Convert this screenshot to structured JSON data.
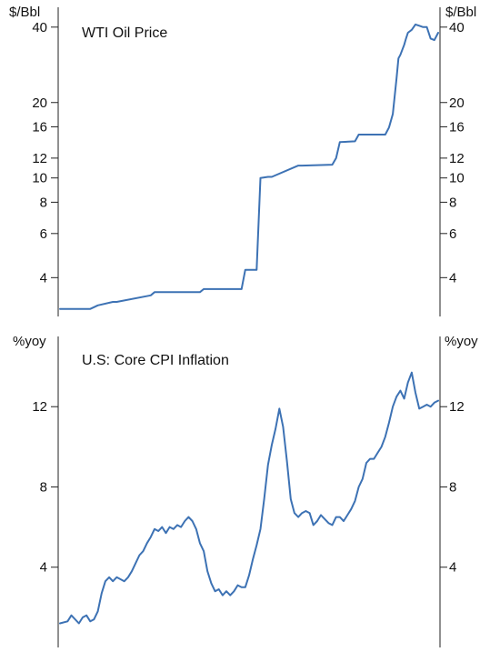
{
  "chart_data": [
    {
      "type": "line",
      "title": "WTI Oil Price",
      "y_unit_left": "$/Bbl",
      "y_unit_right": "$/Bbl",
      "y_scale": "log",
      "ylim": [
        2.8,
        48
      ],
      "y_ticks": [
        4,
        6,
        8,
        10,
        12,
        16,
        20,
        40
      ],
      "x_range": [
        0,
        100
      ],
      "grid": false,
      "color": "#3d72b4",
      "series": [
        {
          "x": [
            0,
            8,
            9,
            10,
            14,
            15,
            24,
            25,
            37,
            38,
            48,
            49,
            52,
            53,
            55,
            56,
            63,
            64,
            72,
            73,
            74,
            78,
            79,
            86,
            87,
            88,
            89,
            89.5,
            90,
            91,
            91.5,
            92,
            93,
            94,
            95,
            96,
            97,
            98,
            99,
            100
          ],
          "y": [
            3.0,
            3.0,
            3.05,
            3.1,
            3.2,
            3.2,
            3.4,
            3.5,
            3.5,
            3.6,
            3.6,
            4.3,
            4.3,
            10.0,
            10.1,
            10.1,
            11.2,
            11.2,
            11.3,
            12.0,
            13.9,
            14.0,
            14.9,
            14.9,
            15.9,
            18.0,
            25.0,
            30.0,
            31.0,
            34.0,
            36.0,
            38.0,
            39.0,
            41.0,
            40.5,
            40.0,
            40.0,
            36.0,
            35.5,
            38.0
          ]
        }
      ]
    },
    {
      "type": "line",
      "title": "U.S: Core CPI Inflation",
      "y_unit_left": "%yoy",
      "y_unit_right": "%yoy",
      "ylim": [
        0,
        15.5
      ],
      "y_ticks": [
        4,
        8,
        12
      ],
      "x_range": [
        0,
        100
      ],
      "grid": false,
      "color": "#3d72b4",
      "series": [
        {
          "x": [
            0,
            2,
            3,
            5,
            6,
            7,
            8,
            9,
            10,
            11,
            12,
            13,
            14,
            15,
            16,
            17,
            18,
            19,
            20,
            21,
            22,
            23,
            24,
            25,
            26,
            27,
            28,
            29,
            30,
            31,
            32,
            33,
            34,
            35,
            36,
            37,
            38,
            39,
            40,
            41,
            42,
            43,
            44,
            45,
            46,
            47,
            48,
            49,
            50,
            51,
            52,
            53,
            54,
            55,
            56,
            57,
            58,
            59,
            60,
            61,
            62,
            63,
            64,
            65,
            66,
            67,
            68,
            69,
            70,
            71,
            72,
            73,
            74,
            75,
            76,
            77,
            78,
            79,
            80,
            81,
            82,
            83,
            84,
            85,
            86,
            87,
            88,
            89,
            90,
            91,
            92,
            93,
            94,
            95,
            96,
            97,
            98,
            99,
            100
          ],
          "y": [
            1.2,
            1.3,
            1.6,
            1.2,
            1.5,
            1.6,
            1.3,
            1.4,
            1.8,
            2.7,
            3.3,
            3.5,
            3.3,
            3.5,
            3.4,
            3.3,
            3.5,
            3.8,
            4.2,
            4.6,
            4.8,
            5.2,
            5.5,
            5.9,
            5.8,
            6.0,
            5.7,
            6.0,
            5.9,
            6.1,
            6.0,
            6.3,
            6.5,
            6.3,
            5.9,
            5.2,
            4.8,
            3.8,
            3.2,
            2.8,
            2.9,
            2.6,
            2.8,
            2.6,
            2.8,
            3.1,
            3.0,
            3.0,
            3.6,
            4.4,
            5.1,
            5.9,
            7.4,
            9.1,
            10.1,
            10.9,
            11.9,
            11.0,
            9.3,
            7.4,
            6.7,
            6.5,
            6.7,
            6.8,
            6.7,
            6.1,
            6.3,
            6.6,
            6.4,
            6.2,
            6.1,
            6.5,
            6.5,
            6.3,
            6.6,
            6.9,
            7.3,
            8.0,
            8.4,
            9.2,
            9.4,
            9.4,
            9.7,
            10.0,
            10.5,
            11.2,
            12.0,
            12.5,
            12.8,
            12.4,
            13.2,
            13.7,
            12.7,
            11.9,
            12.0,
            12.1,
            12.0,
            12.2,
            12.3
          ]
        }
      ]
    }
  ]
}
